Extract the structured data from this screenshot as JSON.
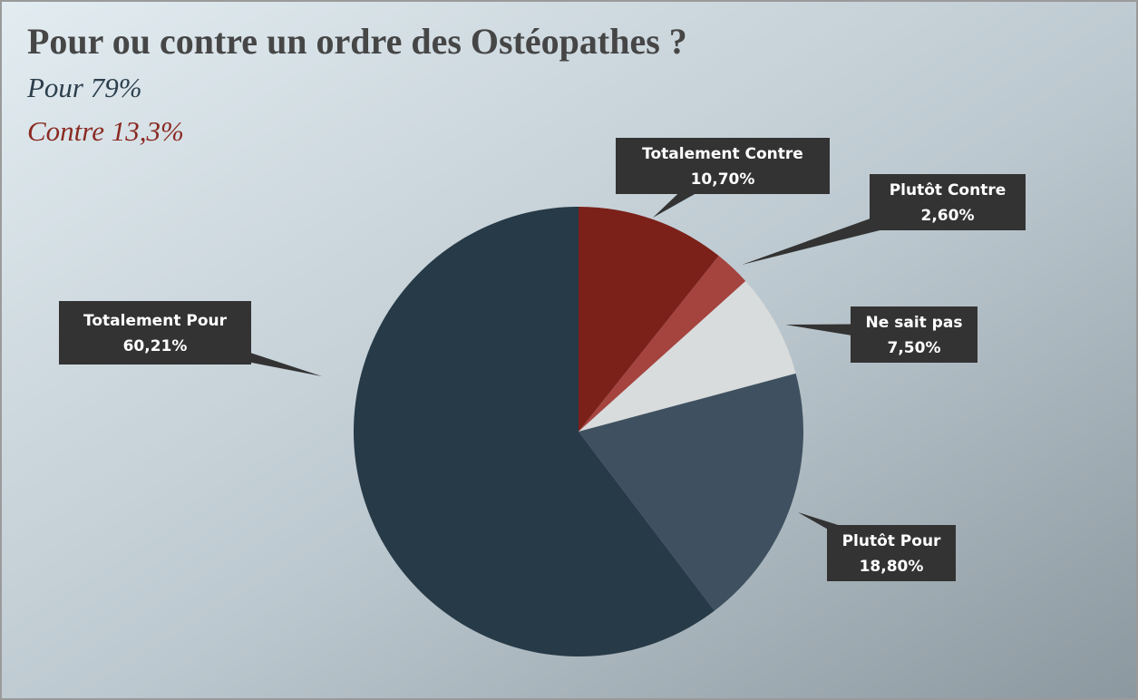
{
  "chart_data": {
    "type": "pie",
    "title": "Pour ou contre un ordre des Ostéopathes ?",
    "subtitles": [
      {
        "text": "Pour 79%",
        "color": "#2c3e4c"
      },
      {
        "text": "Contre 13,3%",
        "color": "#8a2a22"
      }
    ],
    "categories": [
      "Totalement Contre",
      "Plutôt Contre",
      "Ne sait pas",
      "Plutôt Pour",
      "Totalement Pour"
    ],
    "values": [
      10.7,
      2.6,
      7.5,
      18.8,
      60.21
    ],
    "value_labels": [
      "10,70%",
      "2,60%",
      "7,50%",
      "18,80%",
      "60,21%"
    ],
    "colors": [
      "#7b2119",
      "#a5433f",
      "#d9dcdc",
      "#3f5160",
      "#273a47"
    ]
  }
}
